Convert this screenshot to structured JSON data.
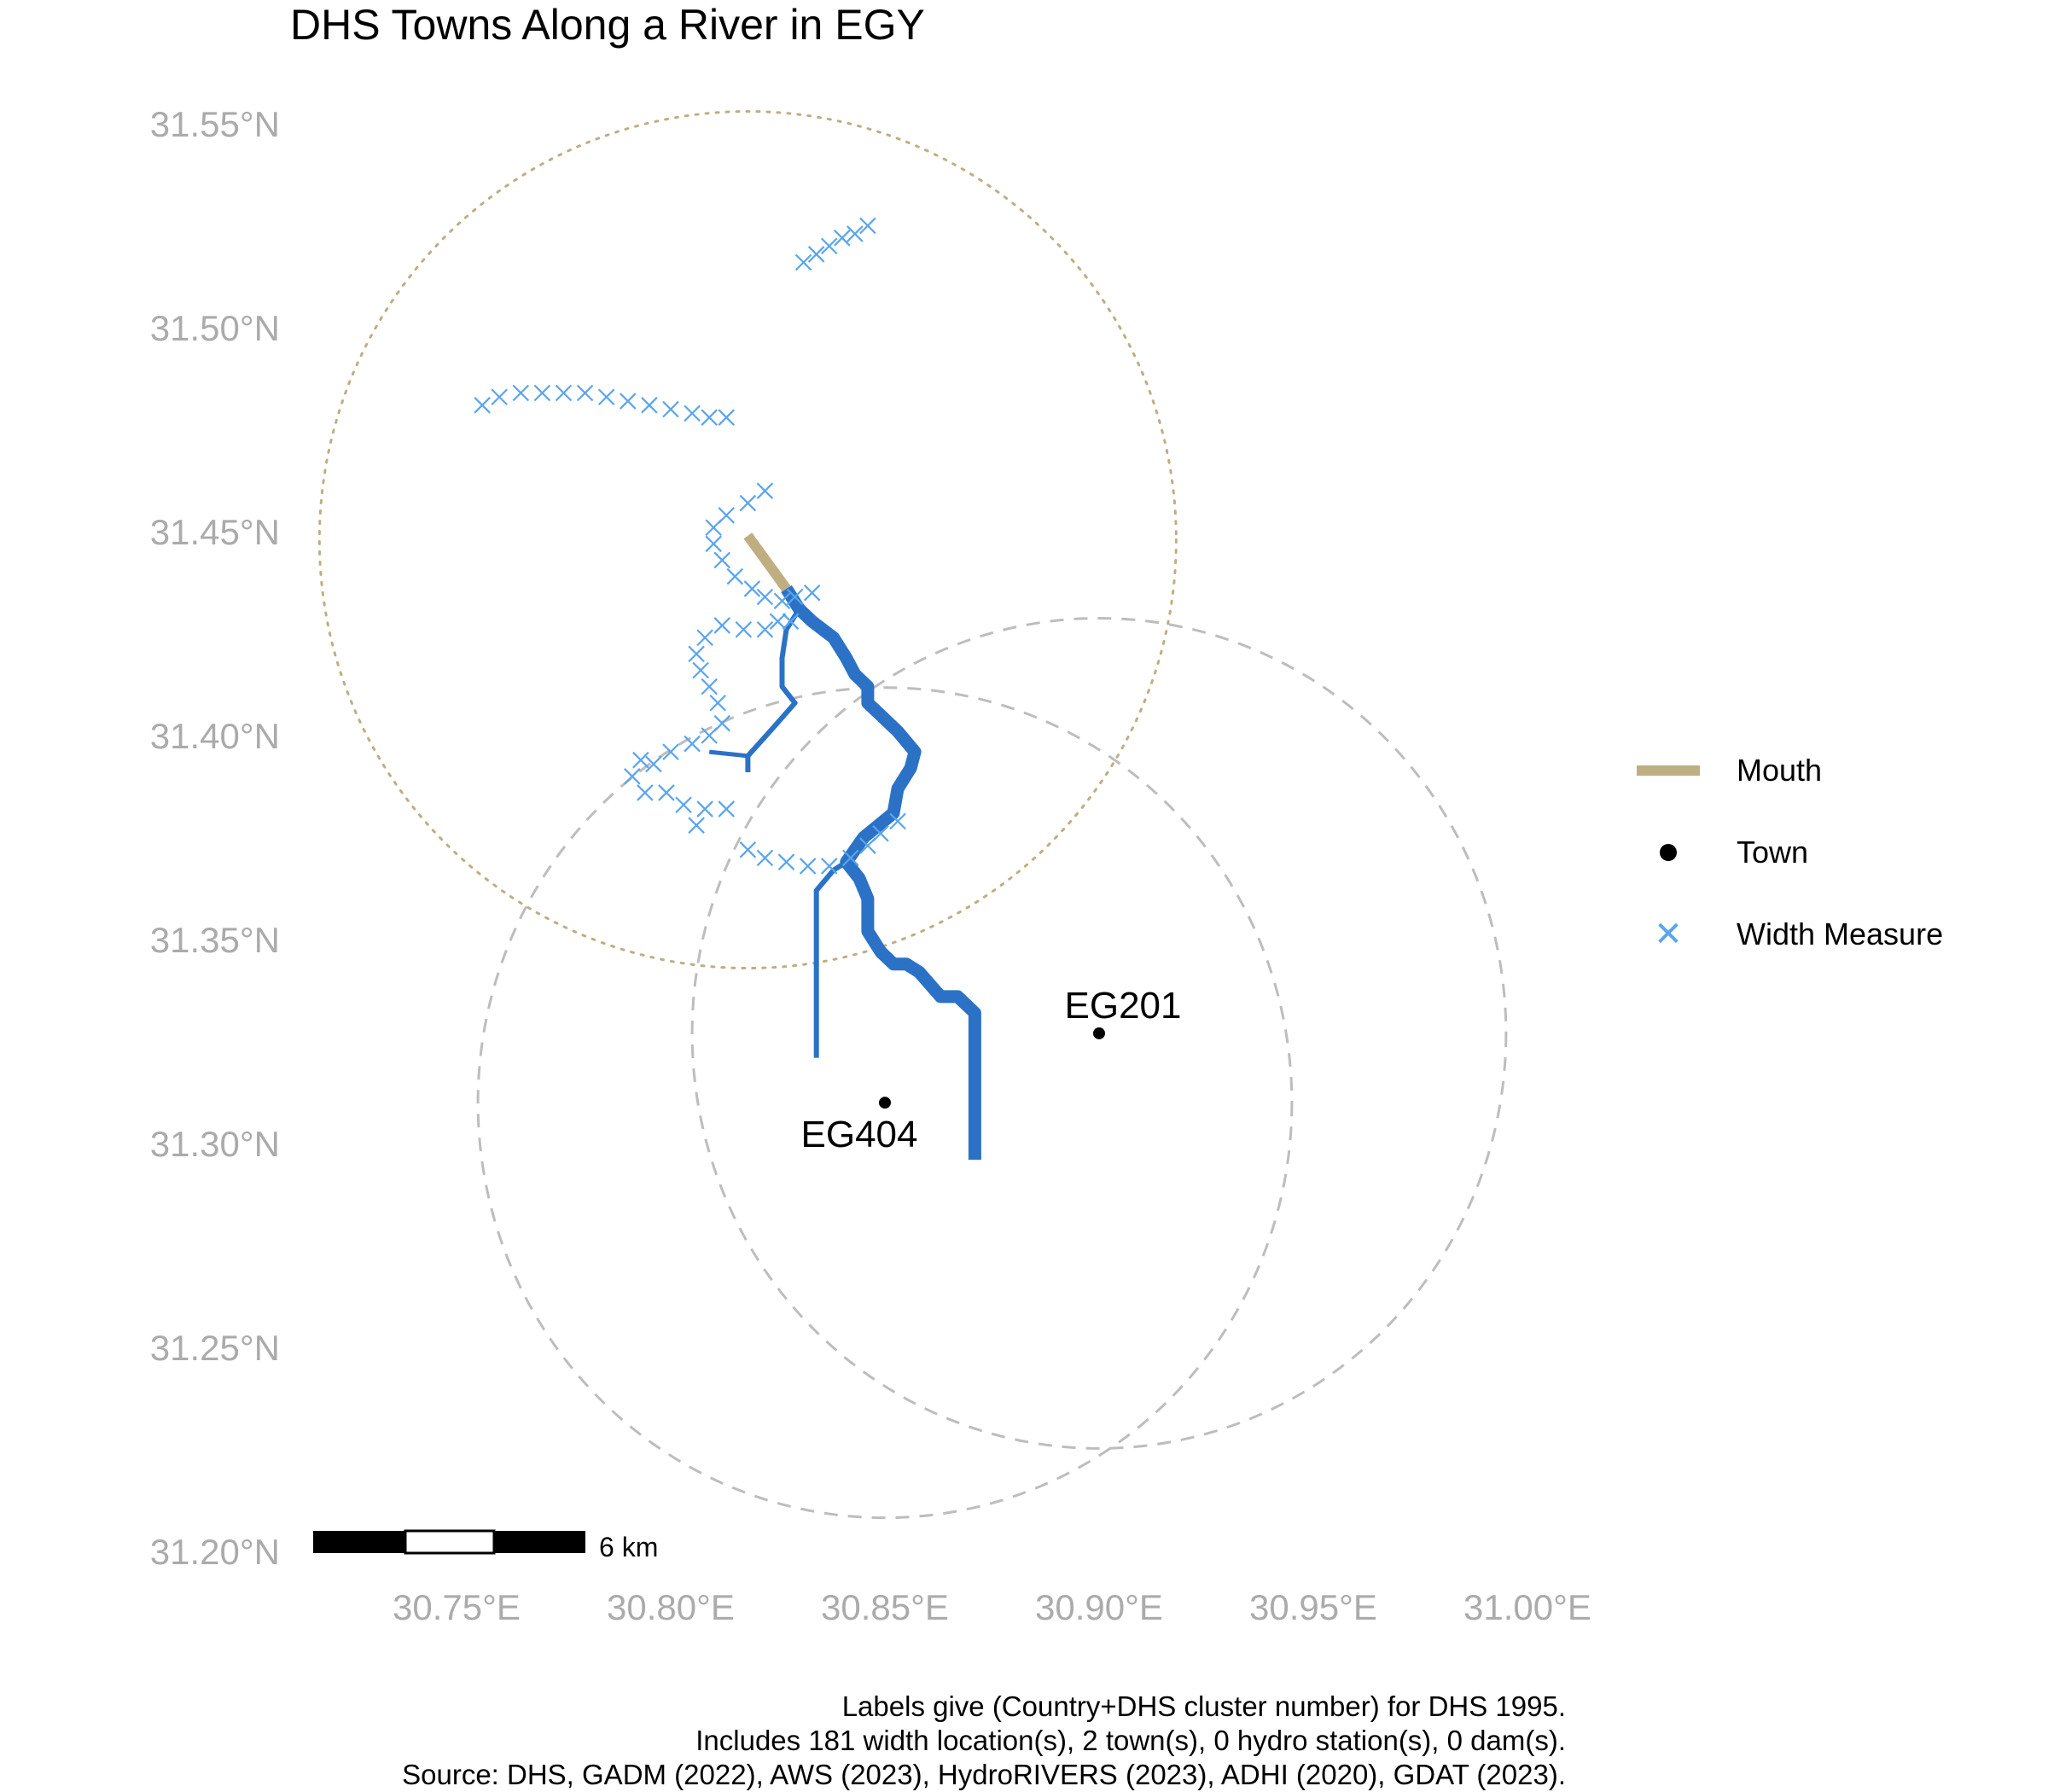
{
  "title": "DHS Towns Along a River in EGY",
  "axes": {
    "x_ticks": [
      "30.75°E",
      "30.80°E",
      "30.85°E",
      "30.90°E",
      "30.95°E",
      "31.00°E"
    ],
    "y_ticks": [
      "31.55°N",
      "31.50°N",
      "31.45°N",
      "31.40°N",
      "31.35°N",
      "31.30°N",
      "31.25°N",
      "31.20°N"
    ]
  },
  "towns": [
    {
      "label": "EG201",
      "lon": 30.9,
      "lat": 31.327
    },
    {
      "label": "EG404",
      "lon": 30.85,
      "lat": 31.31
    }
  ],
  "buffers": {
    "mouth_circle": {
      "lon": 30.818,
      "lat": 31.448,
      "radius_deg": 0.1,
      "style": "dotted",
      "color": "#bfae82"
    },
    "town_circles": [
      {
        "town": "EG201",
        "lon": 30.9,
        "lat": 31.327,
        "radius_deg": 0.095,
        "style": "dashed",
        "color": "#bdbdbd"
      },
      {
        "town": "EG404",
        "lon": 30.85,
        "lat": 31.31,
        "radius_deg": 0.095,
        "style": "dashed",
        "color": "#bdbdbd"
      }
    ]
  },
  "rivers": {
    "color": "#2b72c6",
    "main": [
      [
        30.871,
        31.296
      ],
      [
        30.871,
        31.315
      ],
      [
        30.871,
        31.332
      ],
      [
        30.867,
        31.336
      ],
      [
        30.863,
        31.336
      ],
      [
        30.858,
        31.342
      ],
      [
        30.855,
        31.344
      ],
      [
        30.852,
        31.344
      ],
      [
        30.849,
        31.347
      ],
      [
        30.846,
        31.352
      ],
      [
        30.846,
        31.36
      ],
      [
        30.844,
        31.365
      ],
      [
        30.841,
        31.369
      ],
      [
        30.845,
        31.375
      ],
      [
        30.852,
        31.381
      ],
      [
        30.853,
        31.387
      ],
      [
        30.856,
        31.392
      ],
      [
        30.857,
        31.396
      ],
      [
        30.853,
        31.401
      ],
      [
        30.849,
        31.405
      ],
      [
        30.846,
        31.408
      ],
      [
        30.846,
        31.412
      ],
      [
        30.843,
        31.415
      ],
      [
        30.841,
        31.419
      ],
      [
        30.838,
        31.424
      ],
      [
        30.833,
        31.428
      ],
      [
        30.83,
        31.431
      ],
      [
        30.827,
        31.436
      ]
    ],
    "branch_south": [
      [
        30.834,
        31.321
      ],
      [
        30.834,
        31.341
      ],
      [
        30.834,
        31.362
      ],
      [
        30.838,
        31.367
      ],
      [
        30.841,
        31.369
      ]
    ],
    "branch_west": [
      [
        30.818,
        31.391
      ],
      [
        30.818,
        31.395
      ],
      [
        30.824,
        31.402
      ],
      [
        30.829,
        31.408
      ],
      [
        30.826,
        31.412
      ],
      [
        30.826,
        31.419
      ],
      [
        30.827,
        31.426
      ],
      [
        30.83,
        31.431
      ]
    ],
    "branch_west_spur": [
      [
        30.809,
        31.396
      ],
      [
        30.818,
        31.395
      ]
    ]
  },
  "mouth_segment": {
    "color": "#bfae82",
    "from": [
      30.818,
      31.449
    ],
    "to": [
      30.827,
      31.436
    ]
  },
  "width_measures": {
    "color": "#5aa5ec",
    "count": 181,
    "groups": [
      [
        [
          30.756,
          31.481
        ],
        [
          30.76,
          31.483
        ],
        [
          30.765,
          31.484
        ],
        [
          30.77,
          31.484
        ],
        [
          30.775,
          31.484
        ],
        [
          30.78,
          31.484
        ],
        [
          30.785,
          31.483
        ],
        [
          30.79,
          31.482
        ],
        [
          30.795,
          31.481
        ],
        [
          30.8,
          31.48
        ],
        [
          30.805,
          31.479
        ],
        [
          30.809,
          31.478
        ],
        [
          30.813,
          31.478
        ]
      ],
      [
        [
          30.831,
          31.516
        ],
        [
          30.834,
          31.518
        ],
        [
          30.837,
          31.52
        ],
        [
          30.84,
          31.522
        ],
        [
          30.843,
          31.523
        ],
        [
          30.846,
          31.525
        ]
      ],
      [
        [
          30.813,
          31.382
        ],
        [
          30.818,
          31.372
        ],
        [
          30.822,
          31.37
        ],
        [
          30.827,
          31.369
        ],
        [
          30.832,
          31.368
        ],
        [
          30.837,
          31.368
        ],
        [
          30.842,
          31.37
        ],
        [
          30.846,
          31.373
        ],
        [
          30.849,
          31.376
        ],
        [
          30.853,
          31.379
        ]
      ],
      [
        [
          30.808,
          31.382
        ],
        [
          30.806,
          31.378
        ],
        [
          30.803,
          31.383
        ],
        [
          30.799,
          31.386
        ],
        [
          30.794,
          31.386
        ],
        [
          30.791,
          31.39
        ],
        [
          30.793,
          31.394
        ],
        [
          30.796,
          31.393
        ],
        [
          30.8,
          31.396
        ],
        [
          30.805,
          31.398
        ],
        [
          30.809,
          31.4
        ],
        [
          30.812,
          31.403
        ],
        [
          30.811,
          31.408
        ],
        [
          30.809,
          31.412
        ],
        [
          30.807,
          31.416
        ],
        [
          30.806,
          31.42
        ],
        [
          30.808,
          31.424
        ],
        [
          30.812,
          31.427
        ],
        [
          30.817,
          31.426
        ],
        [
          30.822,
          31.426
        ],
        [
          30.825,
          31.428
        ],
        [
          30.828,
          31.428
        ]
      ],
      [
        [
          30.822,
          31.46
        ],
        [
          30.818,
          31.457
        ],
        [
          30.813,
          31.454
        ],
        [
          30.81,
          31.451
        ],
        [
          30.81,
          31.447
        ],
        [
          30.812,
          31.443
        ],
        [
          30.815,
          31.439
        ],
        [
          30.819,
          31.436
        ],
        [
          30.822,
          31.434
        ],
        [
          30.826,
          31.433
        ],
        [
          30.829,
          31.434
        ],
        [
          30.833,
          31.435
        ]
      ]
    ]
  },
  "scale_bar": {
    "label": "6 km"
  },
  "legend": [
    {
      "icon": "mouth-line",
      "label": "Mouth"
    },
    {
      "icon": "town-dot",
      "label": "Town"
    },
    {
      "icon": "width-cross",
      "label": "Width Measure"
    }
  ],
  "caption": [
    "Labels give (Country+DHS cluster number) for DHS 1995.",
    "Includes 181 width location(s), 2 town(s), 0 hydro station(s), 0 dam(s).",
    "Source: DHS, GADM (2022), AWS (2023), HydroRIVERS (2023), ADHI (2020), GDAT (2023)."
  ]
}
